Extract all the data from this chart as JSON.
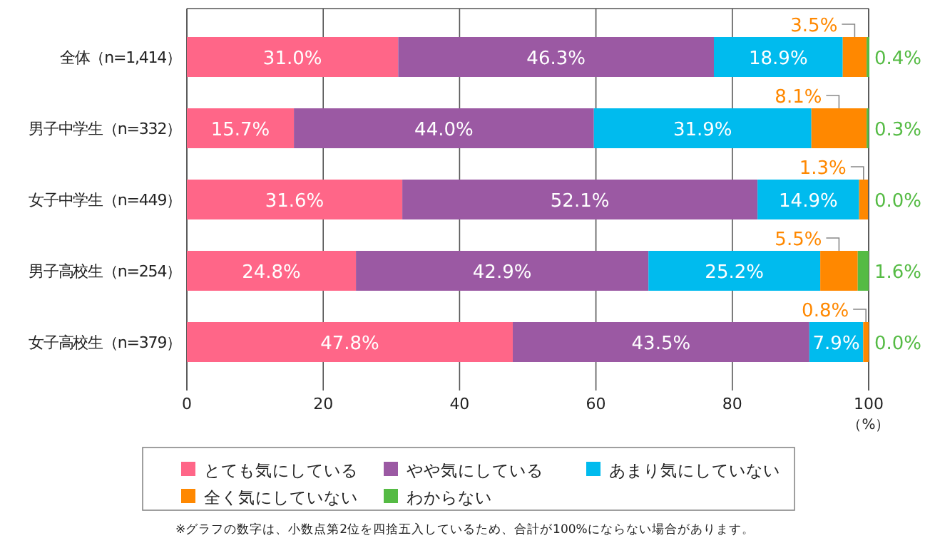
{
  "chart_data": {
    "type": "bar",
    "orientation": "horizontal",
    "stacked": true,
    "categories": [
      "全体（n=1,414）",
      "男子中学生（n=332）",
      "女子中学生（n=449）",
      "男子高校生（n=254）",
      "女子高校生（n=379）"
    ],
    "series": [
      {
        "name": "とても気にしている",
        "color": "#ff6688",
        "values": [
          31.0,
          15.7,
          31.6,
          24.8,
          47.8
        ],
        "value_labels": [
          "31.0%",
          "15.7%",
          "31.6%",
          "24.8%",
          "47.8%"
        ]
      },
      {
        "name": "やや気にしている",
        "color": "#9b59a3",
        "values": [
          46.3,
          44.0,
          52.1,
          42.9,
          43.5
        ],
        "value_labels": [
          "46.3%",
          "44.0%",
          "52.1%",
          "42.9%",
          "43.5%"
        ]
      },
      {
        "name": "あまり気にしていない",
        "color": "#00bbee",
        "values": [
          18.9,
          31.9,
          14.9,
          25.2,
          7.9
        ],
        "value_labels": [
          "18.9%",
          "31.9%",
          "14.9%",
          "25.2%",
          "7.9%"
        ]
      },
      {
        "name": "全く気にしていない",
        "color": "#ff8800",
        "values": [
          3.5,
          8.1,
          1.3,
          5.5,
          0.8
        ],
        "value_labels": [
          "3.5%",
          "8.1%",
          "1.3%",
          "5.5%",
          "0.8%"
        ]
      },
      {
        "name": "わからない",
        "color": "#55bb44",
        "values": [
          0.4,
          0.3,
          0.0,
          1.6,
          0.0
        ],
        "value_labels": [
          "0.4%",
          "0.3%",
          "0.0%",
          "1.6%",
          "0.0%"
        ]
      }
    ],
    "xlim": [
      0,
      100
    ],
    "xticks": [
      0,
      20,
      40,
      60,
      80,
      100
    ],
    "xlabel": "（%）",
    "grid": "x",
    "legend": "bottom",
    "annotations": [
      "※グラフの数字は、小数点第2位を四捨五入しているため、合計が100%にならない場合があります。"
    ]
  }
}
